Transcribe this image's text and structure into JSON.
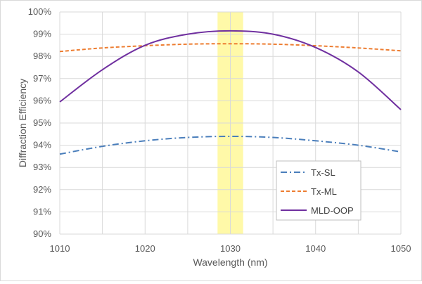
{
  "chart_data": {
    "type": "line",
    "title": "",
    "xlabel": "Wavelength (nm)",
    "ylabel": "Diffraction Efficiency",
    "xlim": [
      1010,
      1050
    ],
    "ylim": [
      90,
      100
    ],
    "x_ticks": [
      1010,
      1020,
      1030,
      1040,
      1050
    ],
    "x_tick_labels": [
      "1010",
      "1020",
      "1030",
      "1040",
      "1050"
    ],
    "y_ticks": [
      90,
      91,
      92,
      93,
      94,
      95,
      96,
      97,
      98,
      99,
      100
    ],
    "y_tick_labels": [
      "90%",
      "91%",
      "92%",
      "93%",
      "94%",
      "95%",
      "96%",
      "97%",
      "98%",
      "99%",
      "100%"
    ],
    "grid": true,
    "legend_position": "bottom-right",
    "highlight_band": {
      "x_range": [
        1028.5,
        1031.5
      ],
      "color": "#fff9a8"
    },
    "series": [
      {
        "name": "Tx-SL",
        "color": "#4a7ebb",
        "dash": "dash-dot",
        "x": [
          1010,
          1015,
          1020,
          1025,
          1030,
          1035,
          1040,
          1045,
          1050
        ],
        "values": [
          93.6,
          93.95,
          94.2,
          94.35,
          94.4,
          94.35,
          94.2,
          94.0,
          93.7
        ]
      },
      {
        "name": "Tx-ML",
        "color": "#ed7d31",
        "dash": "dashed",
        "x": [
          1010,
          1015,
          1020,
          1025,
          1030,
          1035,
          1040,
          1045,
          1050
        ],
        "values": [
          98.22,
          98.38,
          98.48,
          98.55,
          98.57,
          98.55,
          98.48,
          98.38,
          98.25
        ]
      },
      {
        "name": "MLD-OOP",
        "color": "#7030a0",
        "dash": "solid",
        "x": [
          1010,
          1015,
          1020,
          1025,
          1030,
          1035,
          1040,
          1045,
          1050
        ],
        "values": [
          95.95,
          97.4,
          98.5,
          99.0,
          99.15,
          99.0,
          98.4,
          97.3,
          95.6
        ]
      }
    ]
  }
}
